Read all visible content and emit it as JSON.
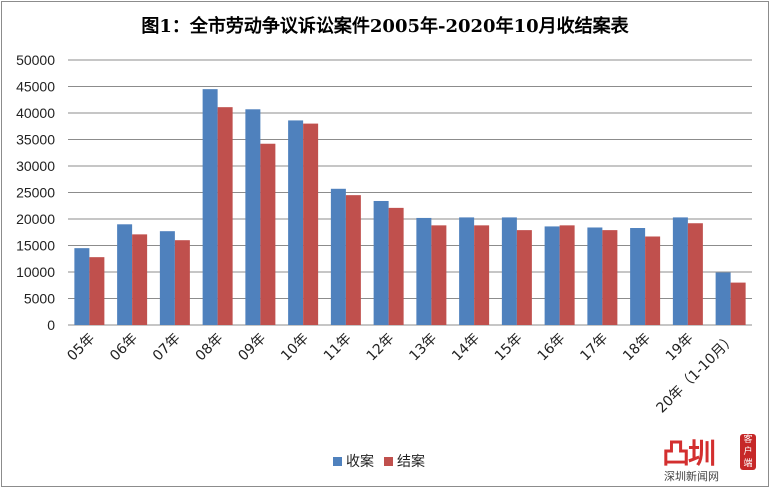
{
  "chart_data": {
    "type": "bar",
    "title": "图1：全市劳动争议诉讼案件2005年-2020年10月收结案表",
    "categories": [
      "05年",
      "06年",
      "07年",
      "08年",
      "09年",
      "10年",
      "11年",
      "12年",
      "13年",
      "14年",
      "15年",
      "16年",
      "17年",
      "18年",
      "19年",
      "20年（1-10月）"
    ],
    "series": [
      {
        "name": "收案",
        "color": "#4f81bd",
        "values": [
          14500,
          19000,
          17700,
          44500,
          40700,
          38600,
          25700,
          23400,
          20200,
          20300,
          20300,
          18600,
          18400,
          18300,
          20300,
          9900
        ]
      },
      {
        "name": "结案",
        "color": "#c0504d",
        "values": [
          12800,
          17100,
          16000,
          41100,
          34200,
          38000,
          24500,
          22100,
          18800,
          18800,
          17900,
          18800,
          17900,
          16700,
          19200,
          8000
        ]
      }
    ],
    "ylim": [
      0,
      50000
    ],
    "yticks": [
      0,
      5000,
      10000,
      15000,
      20000,
      25000,
      30000,
      35000,
      40000,
      45000,
      50000
    ],
    "grid": true,
    "legend": "bottom"
  },
  "watermark": {
    "main": "深圳",
    "tag": "客户端",
    "sub": "深圳新闻网"
  }
}
